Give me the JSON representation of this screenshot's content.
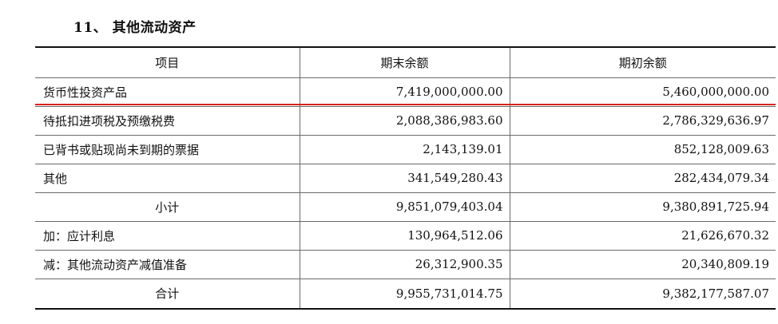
{
  "section": {
    "title": "11、 其他流动资产"
  },
  "table": {
    "headers": [
      "项目",
      "期末余额",
      "期初余额"
    ],
    "rows": [
      {
        "item": "货币性投资产品",
        "end": "7,419,000,000.00",
        "begin": "5,460,000,000.00",
        "align": "left"
      },
      {
        "item": "待抵扣进项税及预缴税费",
        "end": "2,088,386,983.60",
        "begin": "2,786,329,636.97",
        "align": "left"
      },
      {
        "item": "已背书或贴现尚未到期的票据",
        "end": "2,143,139.01",
        "begin": "852,128,009.63",
        "align": "left"
      },
      {
        "item": "其他",
        "end": "341,549,280.43",
        "begin": "282,434,079.34",
        "align": "left"
      },
      {
        "item": "小计",
        "end": "9,851,079,403.04",
        "begin": "9,380,891,725.94",
        "align": "center"
      },
      {
        "item": "加：应计利息",
        "end": "130,964,512.06",
        "begin": "21,626,670.32",
        "align": "left"
      },
      {
        "item": "减：其他流动资产减值准备",
        "end": "26,312,900.35",
        "begin": "20,340,809.19",
        "align": "left"
      },
      {
        "item": "合计",
        "end": "9,955,731,014.75",
        "begin": "9,382,177,587.07",
        "align": "center"
      }
    ]
  },
  "highlight": {
    "color": "#d9231d"
  }
}
